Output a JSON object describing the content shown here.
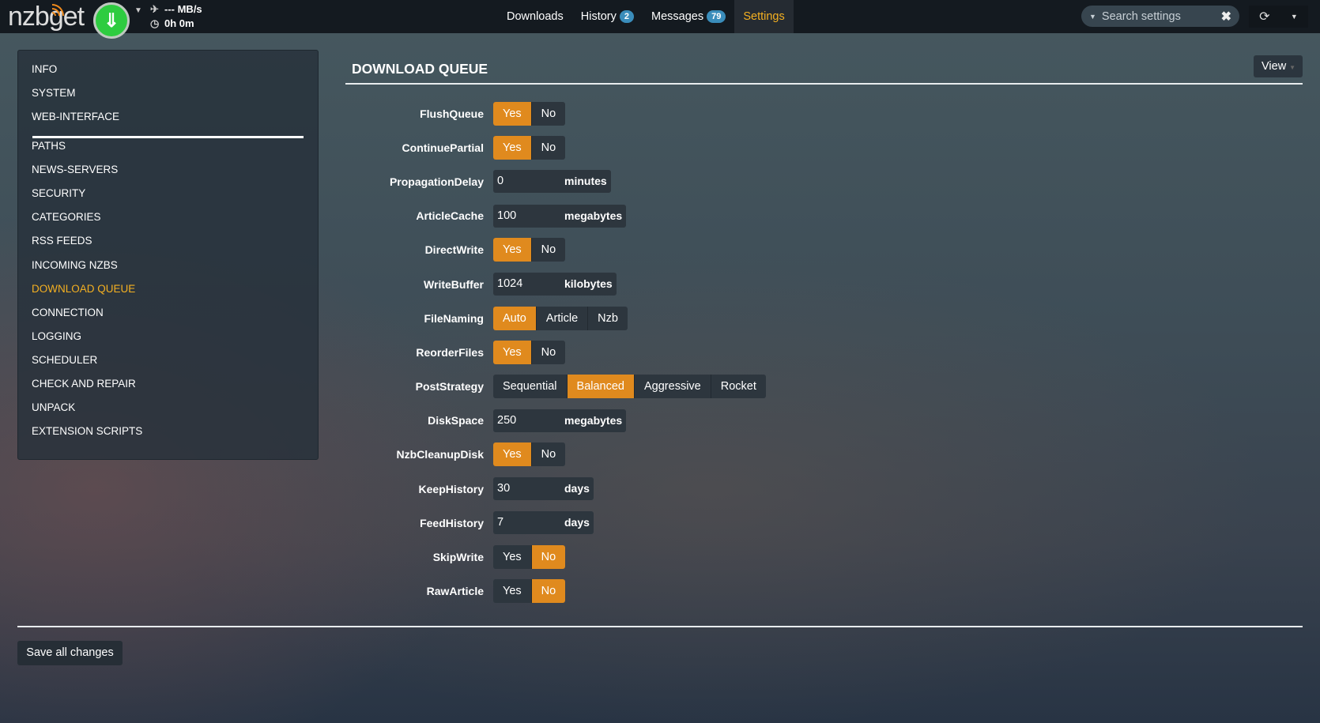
{
  "header": {
    "logo": "nzbget",
    "speed": "--- MB/s",
    "time": "0h 0m",
    "tabs": [
      {
        "label": "Downloads"
      },
      {
        "label": "History",
        "badge": "2"
      },
      {
        "label": "Messages",
        "badge": "79"
      },
      {
        "label": "Settings",
        "active": true
      }
    ],
    "search_placeholder": "Search settings"
  },
  "sidebar": {
    "items": [
      "INFO",
      "SYSTEM",
      "WEB-INTERFACE",
      "PATHS",
      "NEWS-SERVERS",
      "SECURITY",
      "CATEGORIES",
      "RSS FEEDS",
      "INCOMING NZBS",
      "DOWNLOAD QUEUE",
      "CONNECTION",
      "LOGGING",
      "SCHEDULER",
      "CHECK AND REPAIR",
      "UNPACK",
      "EXTENSION SCRIPTS"
    ],
    "active": "DOWNLOAD QUEUE"
  },
  "section": {
    "title": "DOWNLOAD QUEUE",
    "view_label": "View"
  },
  "settings": [
    {
      "name": "FlushQueue",
      "type": "choice",
      "options": [
        "Yes",
        "No"
      ],
      "value": "Yes"
    },
    {
      "name": "ContinuePartial",
      "type": "choice",
      "options": [
        "Yes",
        "No"
      ],
      "value": "Yes"
    },
    {
      "name": "PropagationDelay",
      "type": "number",
      "value": "0",
      "unit": "minutes"
    },
    {
      "name": "ArticleCache",
      "type": "number",
      "value": "100",
      "unit": "megabytes"
    },
    {
      "name": "DirectWrite",
      "type": "choice",
      "options": [
        "Yes",
        "No"
      ],
      "value": "Yes"
    },
    {
      "name": "WriteBuffer",
      "type": "number",
      "value": "1024",
      "unit": "kilobytes"
    },
    {
      "name": "FileNaming",
      "type": "choice",
      "options": [
        "Auto",
        "Article",
        "Nzb"
      ],
      "value": "Auto"
    },
    {
      "name": "ReorderFiles",
      "type": "choice",
      "options": [
        "Yes",
        "No"
      ],
      "value": "Yes"
    },
    {
      "name": "PostStrategy",
      "type": "choice",
      "options": [
        "Sequential",
        "Balanced",
        "Aggressive",
        "Rocket"
      ],
      "value": "Balanced"
    },
    {
      "name": "DiskSpace",
      "type": "number",
      "value": "250",
      "unit": "megabytes"
    },
    {
      "name": "NzbCleanupDisk",
      "type": "choice",
      "options": [
        "Yes",
        "No"
      ],
      "value": "Yes"
    },
    {
      "name": "KeepHistory",
      "type": "number",
      "value": "30",
      "unit": "days"
    },
    {
      "name": "FeedHistory",
      "type": "number",
      "value": "7",
      "unit": "days"
    },
    {
      "name": "SkipWrite",
      "type": "choice",
      "options": [
        "Yes",
        "No"
      ],
      "value": "No"
    },
    {
      "name": "RawArticle",
      "type": "choice",
      "options": [
        "Yes",
        "No"
      ],
      "value": "No"
    }
  ],
  "footer": {
    "save_label": "Save all changes"
  },
  "colors": {
    "accent": "#e08a1e",
    "active_text": "#f4b021",
    "badge": "#3a8dbb",
    "play": "#2ecc40"
  }
}
